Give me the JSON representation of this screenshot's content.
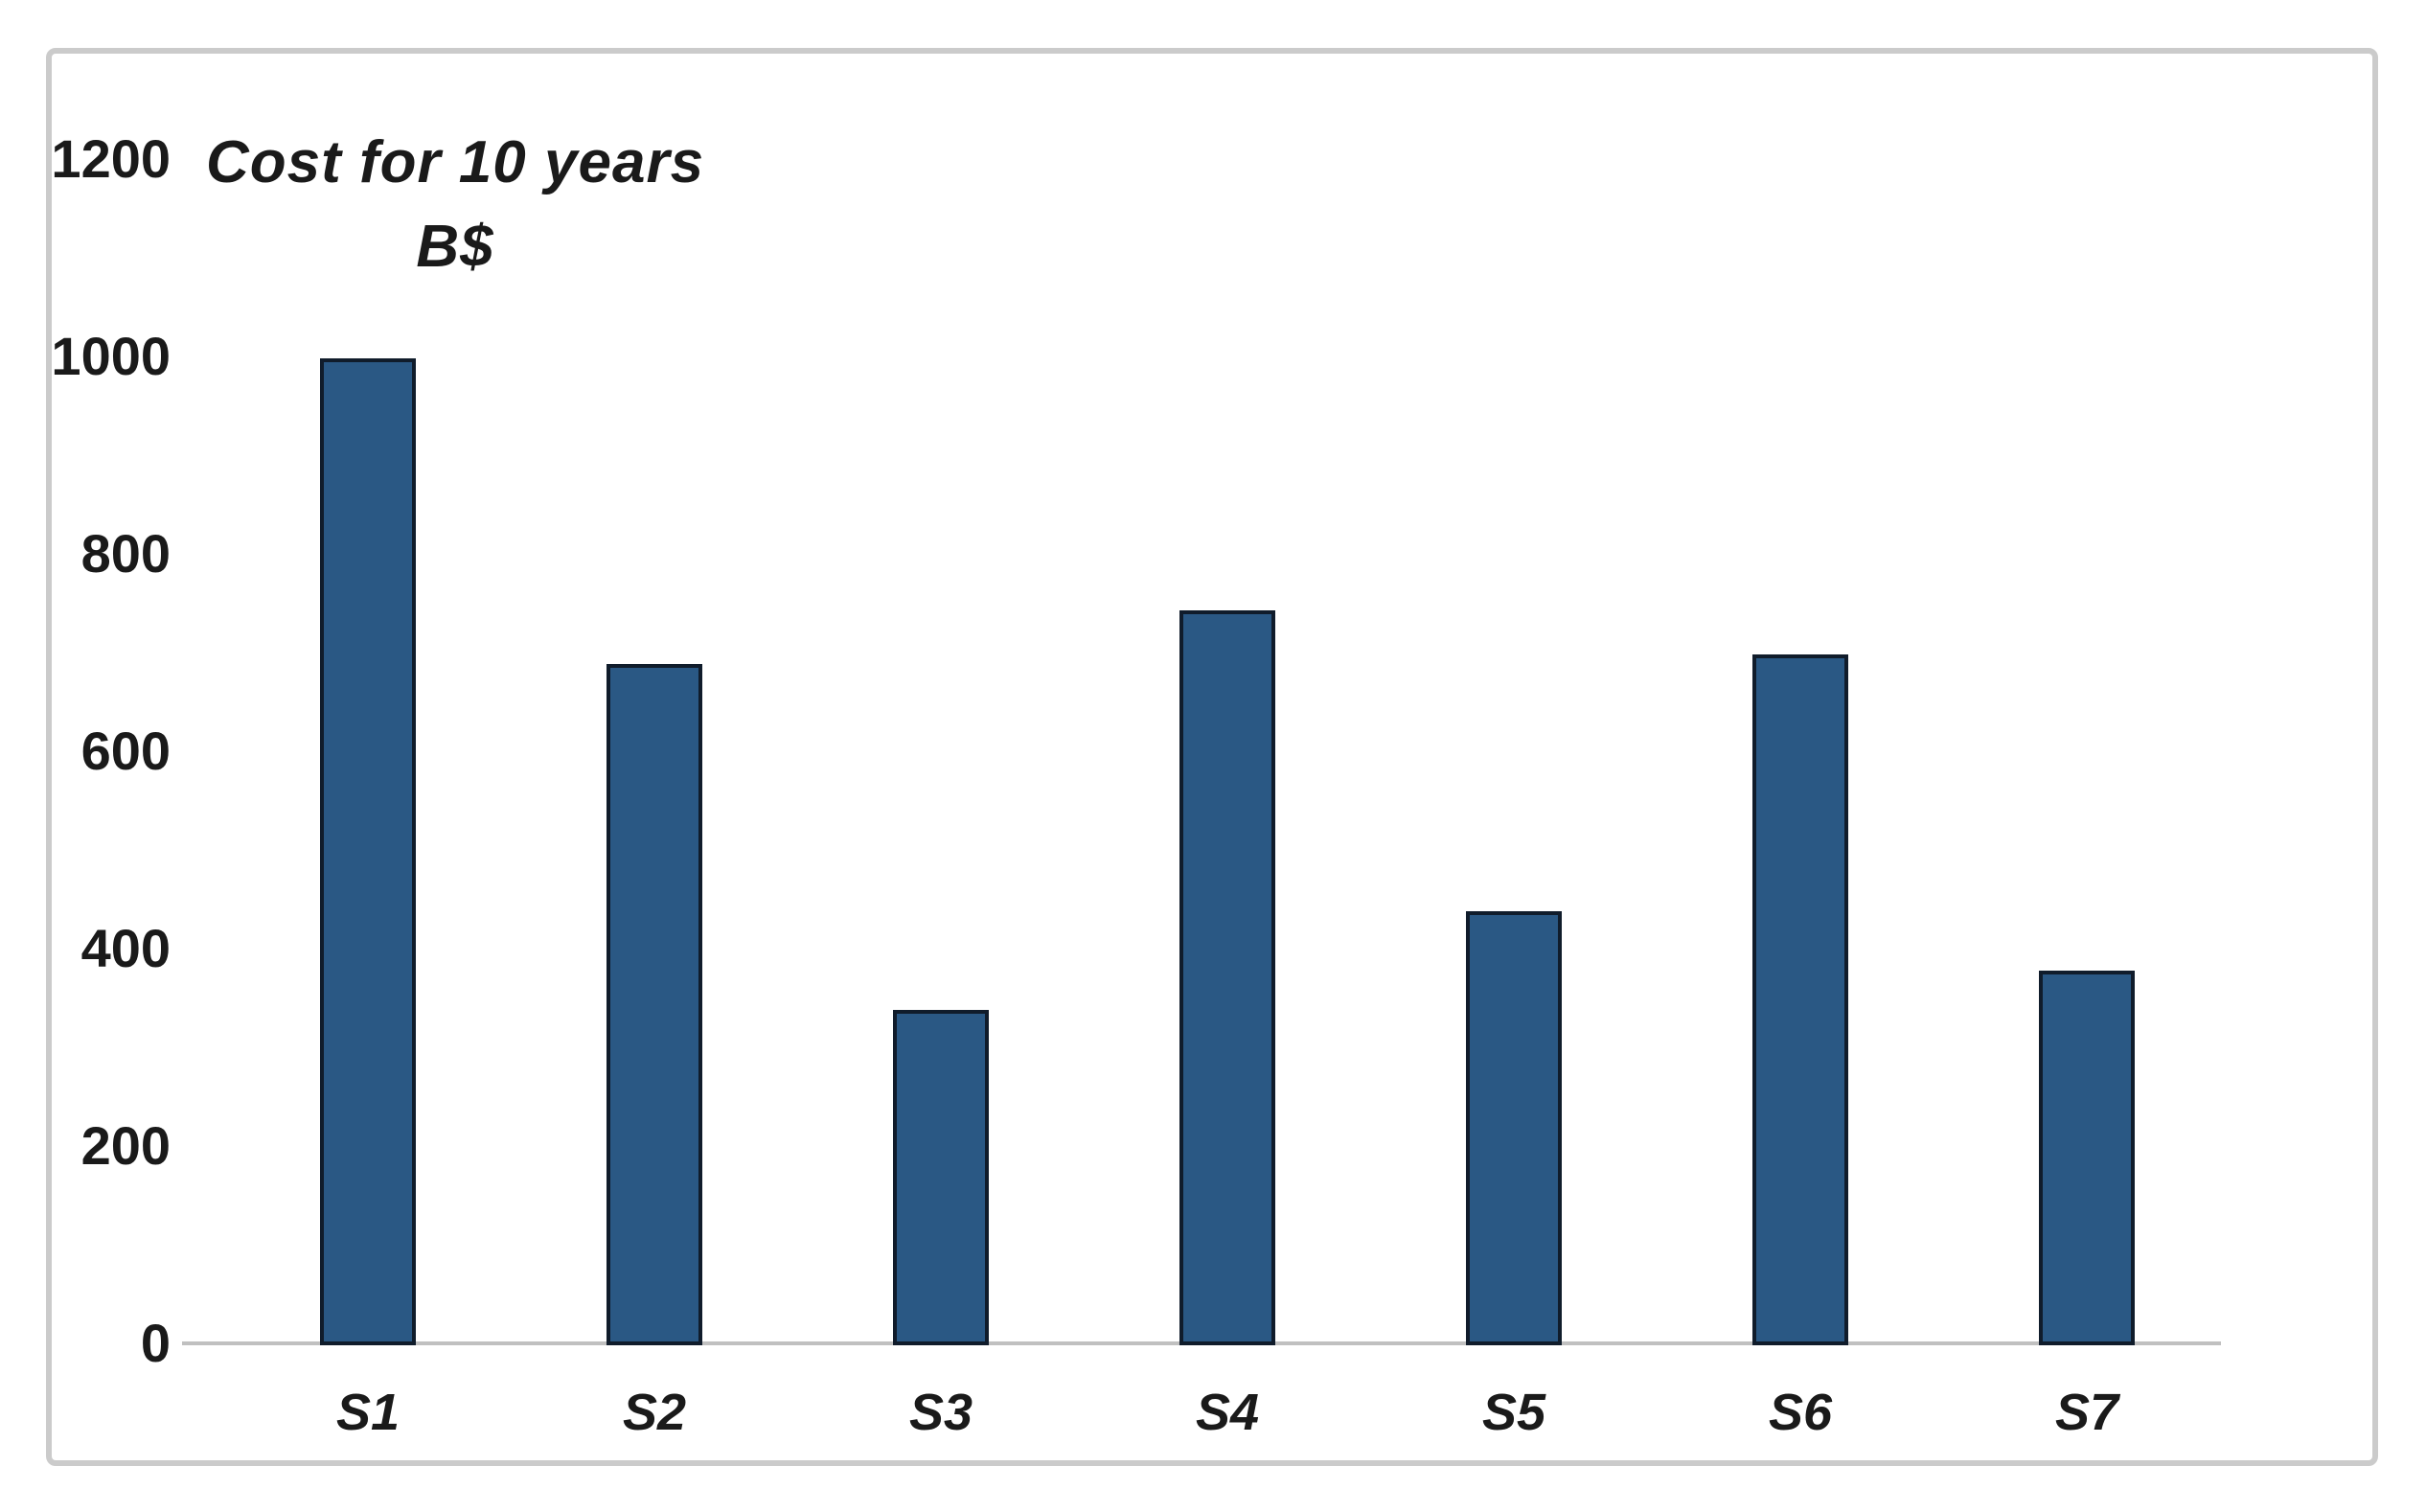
{
  "chart_data": {
    "type": "bar",
    "title": "Cost for 10 years B$",
    "title_line1": "Cost for 10 years",
    "title_line2": "B$",
    "categories": [
      "S1",
      "S2",
      "S3",
      "S4",
      "S5",
      "S6",
      "S7"
    ],
    "values": [
      1000,
      690,
      340,
      745,
      440,
      700,
      380
    ],
    "series": [
      {
        "name": "Cost for 10 years (B$)",
        "values": [
          1000,
          690,
          340,
          745,
          440,
          700,
          380
        ]
      }
    ],
    "xlabel": "",
    "ylabel": "B$",
    "y_ticks": [
      1200,
      1000,
      800,
      600,
      400,
      200,
      0
    ],
    "ylim": [
      0,
      1200
    ],
    "grid": false,
    "legend": false,
    "colors": {
      "bar_fill": "#2a5884",
      "bar_border": "#101c2b",
      "axis_line": "#c0c0c0",
      "frame_border": "#cbcbcb",
      "text": "#1a1a1a",
      "background": "#ffffff"
    }
  }
}
